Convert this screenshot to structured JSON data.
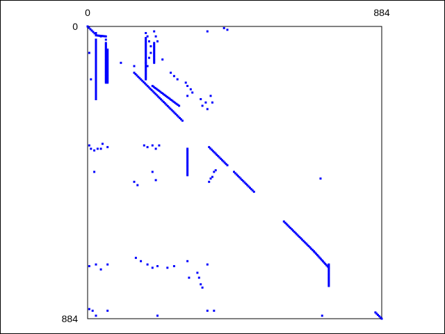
{
  "chart_data": {
    "type": "scatter",
    "title": "",
    "xlabel": "",
    "ylabel": "",
    "xlim": [
      0,
      884
    ],
    "ylim": [
      884,
      0
    ],
    "x_ticks": [
      "0",
      "884"
    ],
    "y_ticks": [
      "0",
      "884"
    ],
    "marker_color": "#0000ff",
    "grid": false,
    "diagonal_runs": [
      [
        0,
        0,
        25,
        25
      ],
      [
        25,
        27,
        55,
        30
      ],
      [
        140,
        140,
        285,
        285
      ],
      [
        195,
        180,
        275,
        240
      ],
      [
        365,
        365,
        420,
        420
      ],
      [
        440,
        440,
        500,
        500
      ],
      [
        590,
        590,
        680,
        680
      ],
      [
        680,
        680,
        725,
        730
      ],
      [
        865,
        865,
        884,
        884
      ]
    ],
    "vertical_runs": [
      [
        25,
        40,
        130
      ],
      [
        55,
        50,
        170
      ],
      [
        60,
        70,
        170
      ],
      [
        25,
        130,
        220
      ],
      [
        175,
        35,
        160
      ],
      [
        200,
        50,
        110
      ],
      [
        300,
        370,
        450
      ],
      [
        725,
        720,
        785
      ]
    ],
    "points": [
      [
        360,
        15
      ],
      [
        5,
        80
      ],
      [
        10,
        160
      ],
      [
        25,
        20
      ],
      [
        40,
        30
      ],
      [
        55,
        40
      ],
      [
        100,
        110
      ],
      [
        140,
        120
      ],
      [
        175,
        20
      ],
      [
        180,
        30
      ],
      [
        185,
        45
      ],
      [
        190,
        60
      ],
      [
        190,
        80
      ],
      [
        185,
        95
      ],
      [
        175,
        110
      ],
      [
        180,
        120
      ],
      [
        200,
        15
      ],
      [
        205,
        30
      ],
      [
        210,
        45
      ],
      [
        225,
        100
      ],
      [
        250,
        140
      ],
      [
        260,
        150
      ],
      [
        270,
        160
      ],
      [
        340,
        220
      ],
      [
        345,
        240
      ],
      [
        355,
        230
      ],
      [
        360,
        250
      ],
      [
        370,
        210
      ],
      [
        375,
        230
      ],
      [
        295,
        170
      ],
      [
        300,
        180
      ],
      [
        310,
        190
      ],
      [
        315,
        200
      ],
      [
        300,
        210
      ],
      [
        5,
        360
      ],
      [
        10,
        370
      ],
      [
        20,
        375
      ],
      [
        30,
        370
      ],
      [
        40,
        370
      ],
      [
        60,
        365
      ],
      [
        45,
        355
      ],
      [
        170,
        360
      ],
      [
        180,
        365
      ],
      [
        195,
        360
      ],
      [
        205,
        370
      ],
      [
        215,
        360
      ],
      [
        20,
        440
      ],
      [
        140,
        470
      ],
      [
        150,
        480
      ],
      [
        195,
        440
      ],
      [
        205,
        465
      ],
      [
        365,
        470
      ],
      [
        370,
        460
      ],
      [
        375,
        455
      ],
      [
        380,
        440
      ],
      [
        385,
        435
      ],
      [
        5,
        725
      ],
      [
        25,
        720
      ],
      [
        40,
        735
      ],
      [
        60,
        720
      ],
      [
        145,
        700
      ],
      [
        160,
        710
      ],
      [
        180,
        720
      ],
      [
        195,
        730
      ],
      [
        210,
        725
      ],
      [
        240,
        730
      ],
      [
        260,
        725
      ],
      [
        300,
        710
      ],
      [
        360,
        720
      ],
      [
        330,
        745
      ],
      [
        335,
        760
      ],
      [
        340,
        780
      ],
      [
        345,
        790
      ],
      [
        305,
        760
      ],
      [
        5,
        855
      ],
      [
        15,
        860
      ],
      [
        25,
        875
      ],
      [
        60,
        860
      ],
      [
        210,
        875
      ],
      [
        360,
        860
      ],
      [
        380,
        860
      ],
      [
        700,
        460
      ],
      [
        705,
        875
      ],
      [
        410,
        5
      ],
      [
        420,
        10
      ]
    ]
  }
}
